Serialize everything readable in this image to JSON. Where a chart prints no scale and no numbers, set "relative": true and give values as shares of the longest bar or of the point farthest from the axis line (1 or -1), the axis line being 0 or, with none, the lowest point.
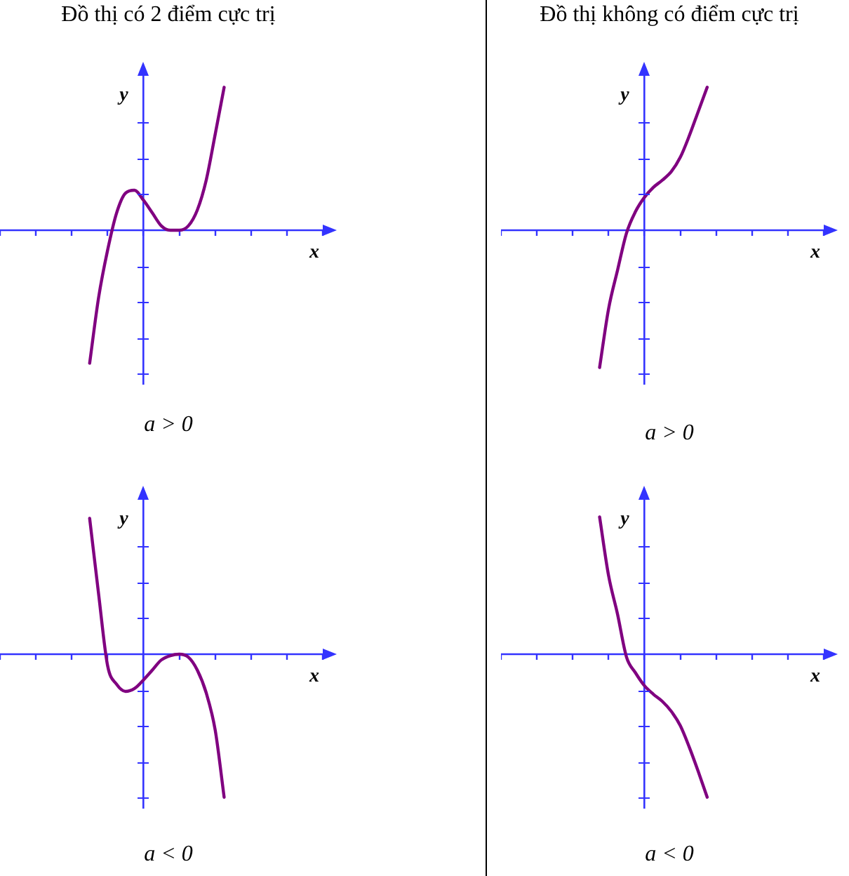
{
  "chart_data": [
    {
      "type": "line",
      "title": "Đồ thị có 2 điểm cực trị",
      "xlabel": "x",
      "ylabel": "y",
      "relative": true,
      "tick_labels": false,
      "annotations": [
        "a > 0"
      ],
      "categories": [
        null,
        null,
        null,
        null,
        null,
        null,
        null,
        null,
        null,
        null,
        null,
        null,
        null,
        null,
        null,
        null,
        null,
        null,
        null,
        null,
        null,
        null,
        null,
        null,
        null,
        null,
        null,
        null,
        null,
        null,
        null,
        null,
        null,
        null,
        null,
        null,
        null
      ],
      "ref_lines": [
        {
          "axis": "y",
          "value": 0,
          "color": "#3333ff"
        }
      ],
      "series": [
        {
          "color": "#800080",
          "values": [
            null,
            null,
            null,
            null,
            null,
            null,
            null,
            null,
            null,
            null,
            -0.93,
            -0.47,
            -0.14,
            0.12,
            0.26,
            0.28,
            0.21,
            0.12,
            0.03,
            0,
            0,
            0.03,
            0.14,
            0.35,
            0.67,
            1,
            null,
            null,
            null,
            null,
            null,
            null,
            null,
            null,
            null,
            null,
            null
          ]
        }
      ]
    },
    {
      "type": "line",
      "title": "Đồ thị không có điểm cực trị",
      "xlabel": "x",
      "ylabel": "y",
      "relative": true,
      "tick_labels": false,
      "annotations": [
        "a > 0"
      ],
      "categories": [
        null,
        null,
        null,
        null,
        null,
        null,
        null,
        null,
        null,
        null,
        null,
        null,
        null,
        null,
        null,
        null,
        null,
        null,
        null,
        null,
        null,
        null,
        null,
        null,
        null,
        null,
        null,
        null,
        null,
        null,
        null,
        null,
        null,
        null,
        null,
        null,
        null
      ],
      "ref_lines": [
        {
          "axis": "y",
          "value": 0,
          "color": "#3333ff"
        }
      ],
      "series": [
        {
          "color": "#800080",
          "values": [
            null,
            null,
            null,
            null,
            null,
            null,
            null,
            null,
            null,
            null,
            null,
            -0.96,
            -0.55,
            -0.28,
            -0.02,
            0.13,
            0.23,
            0.3,
            0.35,
            0.41,
            0.51,
            0.66,
            0.83,
            1,
            null,
            null,
            null,
            null,
            null,
            null,
            null,
            null,
            null,
            null,
            null,
            null,
            null
          ]
        }
      ]
    },
    {
      "type": "line",
      "xlabel": "x",
      "ylabel": "y",
      "relative": true,
      "tick_labels": false,
      "annotations": [
        "a < 0"
      ],
      "categories": [
        null,
        null,
        null,
        null,
        null,
        null,
        null,
        null,
        null,
        null,
        null,
        null,
        null,
        null,
        null,
        null,
        null,
        null,
        null,
        null,
        null,
        null,
        null,
        null,
        null,
        null,
        null,
        null,
        null,
        null,
        null,
        null,
        null,
        null,
        null,
        null,
        null
      ],
      "ref_lines": [
        {
          "axis": "y",
          "value": 0,
          "color": "#3333ff"
        }
      ],
      "series": [
        {
          "color": "#800080",
          "values": [
            null,
            null,
            null,
            null,
            null,
            null,
            null,
            null,
            null,
            null,
            0.95,
            0.42,
            -0.08,
            -0.21,
            -0.26,
            -0.24,
            -0.18,
            -0.11,
            -0.04,
            -0.01,
            0,
            -0.02,
            -0.11,
            -0.27,
            -0.53,
            -1,
            null,
            null,
            null,
            null,
            null,
            null,
            null,
            null,
            null,
            null,
            null
          ]
        }
      ]
    },
    {
      "type": "line",
      "xlabel": "x",
      "ylabel": "y",
      "relative": true,
      "tick_labels": false,
      "annotations": [
        "a < 0"
      ],
      "categories": [
        null,
        null,
        null,
        null,
        null,
        null,
        null,
        null,
        null,
        null,
        null,
        null,
        null,
        null,
        null,
        null,
        null,
        null,
        null,
        null,
        null,
        null,
        null,
        null,
        null,
        null,
        null,
        null,
        null,
        null,
        null,
        null,
        null,
        null,
        null,
        null,
        null
      ],
      "ref_lines": [
        {
          "axis": "y",
          "value": 0,
          "color": "#3333ff"
        }
      ],
      "series": [
        {
          "color": "#800080",
          "values": [
            null,
            null,
            null,
            null,
            null,
            null,
            null,
            null,
            null,
            null,
            null,
            0.96,
            0.55,
            0.28,
            -0.02,
            -0.13,
            -0.22,
            -0.28,
            -0.33,
            -0.4,
            -0.5,
            -0.65,
            -0.82,
            -1,
            null,
            null,
            null,
            null,
            null,
            null,
            null,
            null,
            null,
            null,
            null,
            null,
            null
          ]
        }
      ]
    }
  ]
}
